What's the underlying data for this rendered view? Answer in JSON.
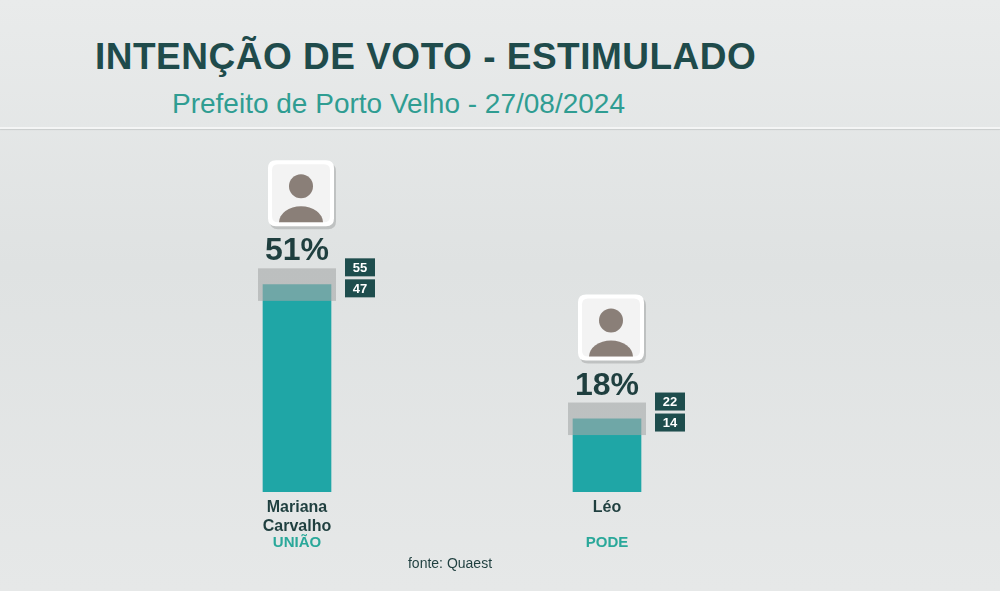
{
  "chart_data": {
    "type": "bar",
    "title": "INTENÇÃO DE VOTO - ESTIMULADO",
    "subtitle": "Prefeito de Porto Velho - 27/08/2024",
    "categories": [
      "Mariana Carvalho",
      "Léo"
    ],
    "parties": [
      "UNIÃO",
      "PODE"
    ],
    "values": [
      51,
      18
    ],
    "value_labels": [
      "51%",
      "18%"
    ],
    "upper": [
      55,
      22
    ],
    "lower": [
      47,
      14
    ],
    "color": "#1fa6a6",
    "data_labels": true,
    "tick_labels": "x",
    "grid": false,
    "source": "fonte: Quaest"
  }
}
